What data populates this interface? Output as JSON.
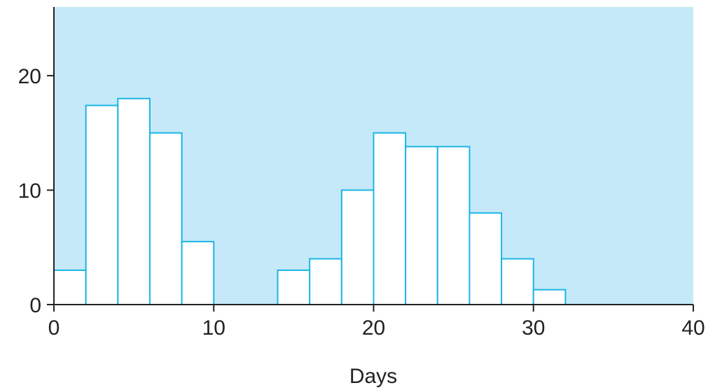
{
  "chart_data": {
    "type": "bar",
    "xlabel": "Days",
    "ylabel": "",
    "bin_width": 2,
    "bins": [
      {
        "x_start": 0,
        "x_end": 2,
        "value": 3
      },
      {
        "x_start": 2,
        "x_end": 4,
        "value": 17.4
      },
      {
        "x_start": 4,
        "x_end": 6,
        "value": 18
      },
      {
        "x_start": 6,
        "x_end": 8,
        "value": 15
      },
      {
        "x_start": 8,
        "x_end": 10,
        "value": 5.5
      },
      {
        "x_start": 14,
        "x_end": 16,
        "value": 3
      },
      {
        "x_start": 16,
        "x_end": 18,
        "value": 4
      },
      {
        "x_start": 18,
        "x_end": 20,
        "value": 10
      },
      {
        "x_start": 20,
        "x_end": 22,
        "value": 15
      },
      {
        "x_start": 22,
        "x_end": 24,
        "value": 13.8
      },
      {
        "x_start": 24,
        "x_end": 26,
        "value": 13.8
      },
      {
        "x_start": 26,
        "x_end": 28,
        "value": 8
      },
      {
        "x_start": 28,
        "x_end": 30,
        "value": 4
      },
      {
        "x_start": 30,
        "x_end": 32,
        "value": 1.3
      }
    ],
    "xlim": [
      0,
      40
    ],
    "ylim": [
      0,
      26
    ],
    "x_ticks": [
      0,
      10,
      20,
      30,
      40
    ],
    "y_ticks": [
      0,
      10,
      20
    ],
    "grid": false,
    "colors": {
      "plot_background": "#c5e9f9",
      "bar_fill": "#ffffff",
      "bar_outline": "#1bb6e6",
      "axis": "#222222"
    }
  }
}
